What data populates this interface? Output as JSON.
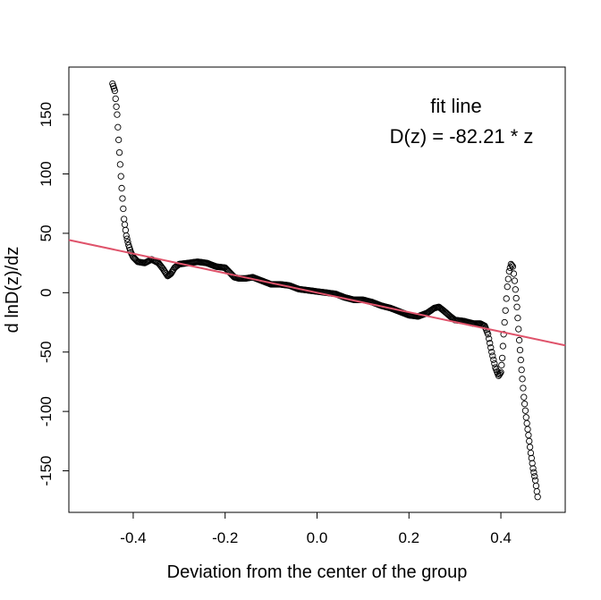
{
  "chart_data": {
    "type": "scatter",
    "title": "",
    "xlabel": "Deviation from the center of the group",
    "ylabel": "d lnD(z)/dz",
    "xlim": [
      -0.54,
      0.54
    ],
    "ylim": [
      -185,
      190
    ],
    "x_ticks": [
      -0.4,
      -0.2,
      0.0,
      0.2,
      0.4
    ],
    "x_tick_labels": [
      "-0.4",
      "-0.2",
      "0.0",
      "0.2",
      "0.4"
    ],
    "y_ticks": [
      -150,
      -100,
      -50,
      0,
      50,
      100,
      150
    ],
    "y_tick_labels": [
      "-150",
      "-100",
      "-50",
      "0",
      "50",
      "100",
      "150"
    ],
    "grid": false,
    "legend": {
      "position": "top-right",
      "line1": "fit line",
      "line2": "D(z) =  -82.21 * z"
    },
    "fit_line": {
      "slope": -82.21,
      "intercept": 0,
      "color": "#DF536B"
    },
    "point_color": "#000000",
    "series_anchors": [
      [
        -0.445,
        176
      ],
      [
        -0.44,
        170
      ],
      [
        -0.435,
        150
      ],
      [
        -0.43,
        118
      ],
      [
        -0.425,
        88
      ],
      [
        -0.42,
        62
      ],
      [
        -0.415,
        48
      ],
      [
        -0.41,
        40
      ],
      [
        -0.405,
        34
      ],
      [
        -0.4,
        30
      ],
      [
        -0.39,
        26
      ],
      [
        -0.375,
        25
      ],
      [
        -0.36,
        28
      ],
      [
        -0.345,
        25
      ],
      [
        -0.335,
        20
      ],
      [
        -0.325,
        14
      ],
      [
        -0.318,
        16
      ],
      [
        -0.31,
        21
      ],
      [
        -0.3,
        24
      ],
      [
        -0.28,
        25
      ],
      [
        -0.26,
        26
      ],
      [
        -0.24,
        25
      ],
      [
        -0.22,
        22
      ],
      [
        -0.2,
        21
      ],
      [
        -0.19,
        17
      ],
      [
        -0.18,
        13
      ],
      [
        -0.17,
        12
      ],
      [
        -0.155,
        12
      ],
      [
        -0.14,
        13
      ],
      [
        -0.12,
        10
      ],
      [
        -0.1,
        7
      ],
      [
        -0.08,
        7
      ],
      [
        -0.06,
        6
      ],
      [
        -0.04,
        3
      ],
      [
        -0.02,
        2
      ],
      [
        0.0,
        1
      ],
      [
        0.02,
        0
      ],
      [
        0.04,
        -1
      ],
      [
        0.06,
        -4
      ],
      [
        0.08,
        -6
      ],
      [
        0.1,
        -6
      ],
      [
        0.12,
        -8
      ],
      [
        0.14,
        -11
      ],
      [
        0.16,
        -13
      ],
      [
        0.18,
        -16
      ],
      [
        0.2,
        -19
      ],
      [
        0.22,
        -20
      ],
      [
        0.24,
        -17
      ],
      [
        0.255,
        -13
      ],
      [
        0.265,
        -12
      ],
      [
        0.275,
        -15
      ],
      [
        0.29,
        -20
      ],
      [
        0.3,
        -23
      ],
      [
        0.32,
        -24
      ],
      [
        0.34,
        -26
      ],
      [
        0.355,
        -26
      ],
      [
        0.365,
        -28
      ],
      [
        0.372,
        -35
      ],
      [
        0.38,
        -50
      ],
      [
        0.388,
        -63
      ],
      [
        0.395,
        -70
      ],
      [
        0.4,
        -67
      ],
      [
        0.403,
        -55
      ],
      [
        0.406,
        -35
      ],
      [
        0.41,
        -15
      ],
      [
        0.414,
        5
      ],
      [
        0.418,
        18
      ],
      [
        0.422,
        24
      ],
      [
        0.426,
        22
      ],
      [
        0.43,
        10
      ],
      [
        0.435,
        -12
      ],
      [
        0.44,
        -40
      ],
      [
        0.445,
        -65
      ],
      [
        0.45,
        -88
      ],
      [
        0.455,
        -105
      ],
      [
        0.46,
        -120
      ],
      [
        0.465,
        -135
      ],
      [
        0.47,
        -148
      ],
      [
        0.475,
        -158
      ],
      [
        0.48,
        -172
      ]
    ]
  }
}
